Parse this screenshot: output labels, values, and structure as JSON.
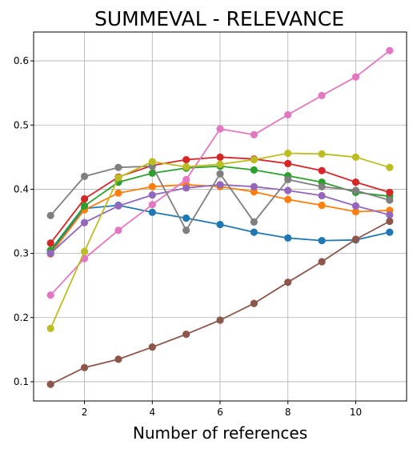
{
  "chart_data": {
    "type": "line",
    "title": "SUMMEVAL - RELEVANCE",
    "xlabel": "Number of references",
    "ylabel": "",
    "xlim": [
      0.5,
      11.5
    ],
    "ylim": [
      0.07,
      0.645
    ],
    "xticks": [
      2,
      4,
      6,
      8,
      10
    ],
    "yticks": [
      0.1,
      0.2,
      0.3,
      0.4,
      0.5,
      0.6
    ],
    "grid": true,
    "x": [
      1,
      2,
      3,
      4,
      5,
      6,
      7,
      8,
      9,
      10,
      11
    ],
    "series": [
      {
        "color": "#1f77b4",
        "values": [
          0.303,
          0.37,
          0.375,
          0.364,
          0.355,
          0.345,
          0.333,
          0.324,
          0.32,
          0.321,
          0.333
        ]
      },
      {
        "color": "#ff7f0e",
        "values": [
          0.299,
          0.368,
          0.394,
          0.404,
          0.407,
          0.404,
          0.396,
          0.384,
          0.375,
          0.365,
          0.367
        ]
      },
      {
        "color": "#2ca02c",
        "values": [
          0.305,
          0.374,
          0.411,
          0.425,
          0.433,
          0.436,
          0.43,
          0.421,
          0.411,
          0.395,
          0.389
        ]
      },
      {
        "color": "#d62728",
        "values": [
          0.316,
          0.385,
          0.419,
          0.437,
          0.446,
          0.45,
          0.447,
          0.44,
          0.429,
          0.411,
          0.395
        ]
      },
      {
        "color": "#9467bd",
        "values": [
          0.3,
          0.348,
          0.374,
          0.391,
          0.402,
          0.407,
          0.404,
          0.398,
          0.39,
          0.374,
          0.36
        ]
      },
      {
        "color": "#8c564b",
        "values": [
          0.096,
          0.122,
          0.135,
          0.154,
          0.174,
          0.196,
          0.222,
          0.255,
          0.287,
          0.322,
          0.35
        ]
      },
      {
        "color": "#e377c2",
        "values": [
          0.235,
          0.292,
          0.336,
          0.376,
          0.415,
          0.494,
          0.485,
          0.516,
          0.546,
          0.575,
          0.616
        ]
      },
      {
        "color": "#7f7f7f",
        "values": [
          0.359,
          0.42,
          0.434,
          0.436,
          0.336,
          0.424,
          0.349,
          0.415,
          0.404,
          0.398,
          0.383
        ]
      },
      {
        "color": "#bcbd22",
        "values": [
          0.183,
          0.303,
          0.418,
          0.443,
          0.435,
          0.439,
          0.446,
          0.456,
          0.455,
          0.45,
          0.434
        ]
      }
    ]
  }
}
